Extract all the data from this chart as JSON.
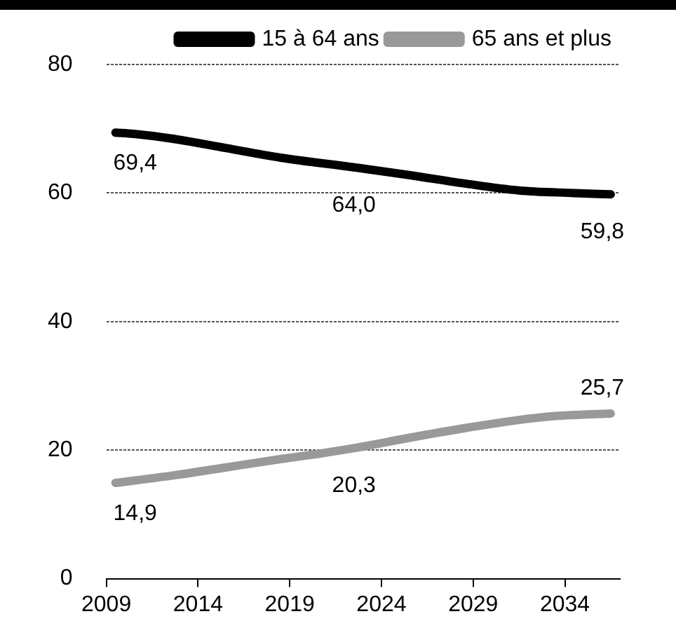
{
  "chart_data": {
    "type": "line",
    "xlim": [
      2008.5,
      2036.5
    ],
    "xticks": [
      {
        "value": 2008.5,
        "label": "2009"
      },
      {
        "value": 2013.5,
        "label": "2014"
      },
      {
        "value": 2018.5,
        "label": "2019"
      },
      {
        "value": 2023.5,
        "label": "2024"
      },
      {
        "value": 2028.5,
        "label": "2029"
      },
      {
        "value": 2033.5,
        "label": "2034"
      }
    ],
    "ylim": [
      0,
      80
    ],
    "yticks": [
      0,
      20,
      40,
      60,
      80
    ],
    "grid": "y",
    "legend": "top",
    "marker": "none",
    "line_style": "solid",
    "series": [
      {
        "name": "15 à 64 ans",
        "color": "#000000",
        "x": [
          2009,
          2010,
          2012,
          2015,
          2018,
          2022,
          2025,
          2028,
          2031,
          2034,
          2036
        ],
        "values": [
          69.4,
          69.2,
          68.5,
          67.0,
          65.5,
          64.0,
          62.8,
          61.5,
          60.4,
          60.0,
          59.8
        ],
        "value_labels": [
          "69,4",
          null,
          null,
          null,
          null,
          "64,0",
          null,
          null,
          null,
          null,
          "59,8"
        ]
      },
      {
        "name": "65 ans et plus",
        "color": "#999999",
        "x": [
          2009,
          2012,
          2015,
          2018,
          2020,
          2022,
          2025,
          2028,
          2031,
          2033,
          2036
        ],
        "values": [
          14.9,
          16.0,
          17.3,
          18.6,
          19.4,
          20.3,
          21.9,
          23.4,
          24.7,
          25.3,
          25.7
        ],
        "value_labels": [
          "14,9",
          null,
          null,
          null,
          null,
          "20,3",
          null,
          null,
          null,
          null,
          "25,7"
        ]
      }
    ]
  }
}
